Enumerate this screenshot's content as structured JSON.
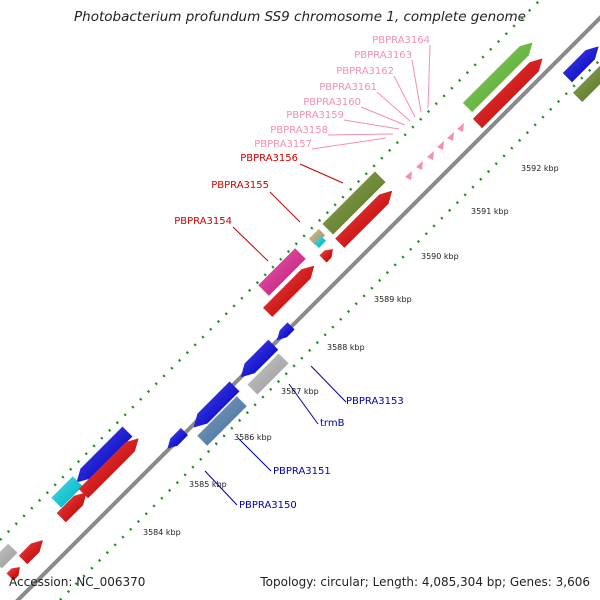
{
  "title": "Photobacterium profundum SS9 chromosome 1, complete genome",
  "footer": {
    "accession": "Accession: NC_006370",
    "topology": "Topology: circular; Length: 4,085,304 bp; Genes: 3,606"
  },
  "scale_labels": [
    "3584 kbp",
    "3585 kbp",
    "3586 kbp",
    "3587 kbp",
    "3588 kbp",
    "3589 kbp",
    "3590 kbp",
    "3591 kbp",
    "3592 kbp"
  ],
  "gene_labels": [
    {
      "text": "PBPRA3164",
      "color": "#f48fb1"
    },
    {
      "text": "PBPRA3163",
      "color": "#f48fb1"
    },
    {
      "text": "PBPRA3162",
      "color": "#f48fb1"
    },
    {
      "text": "PBPRA3161",
      "color": "#f48fb1"
    },
    {
      "text": "PBPRA3160",
      "color": "#f48fb1"
    },
    {
      "text": "PBPRA3159",
      "color": "#f48fb1"
    },
    {
      "text": "PBPRA3158",
      "color": "#f48fb1"
    },
    {
      "text": "PBPRA3157",
      "color": "#f48fb1"
    },
    {
      "text": "PBPRA3156",
      "color": "#cc0000"
    },
    {
      "text": "PBPRA3155",
      "color": "#cc0000"
    },
    {
      "text": "PBPRA3154",
      "color": "#cc0000"
    },
    {
      "text": "PBPRA3153",
      "color": "#0000aa"
    },
    {
      "text": "trmB",
      "color": "#0000aa"
    },
    {
      "text": "PBPRA3151",
      "color": "#0000aa"
    },
    {
      "text": "PBPRA3150",
      "color": "#0000aa"
    }
  ],
  "colors": {
    "backbone": "#8a8a8a",
    "forward_cds": "#0000ee",
    "reverse_cds": "#ee0000",
    "trna": "#f48fb1",
    "cog_green": "#66cc33",
    "cog_olive": "#6b8e23",
    "cog_magenta": "#ee2299",
    "cog_cyan": "#00ddee",
    "cog_steel": "#5588bb",
    "cog_gray": "#c0c0c0",
    "cog_tan": "#c8b478",
    "tick_green": "#228b22"
  }
}
